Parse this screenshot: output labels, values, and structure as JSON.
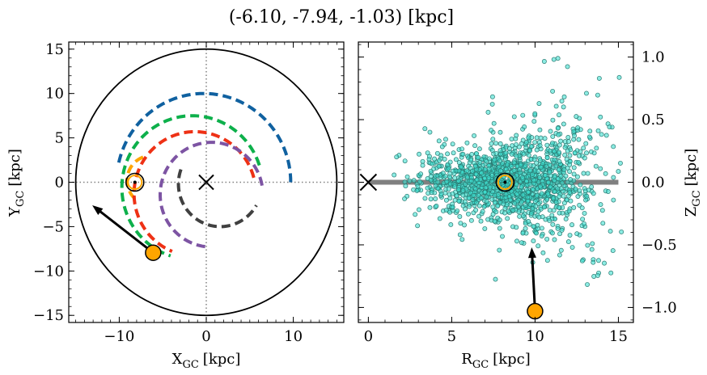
{
  "figure": {
    "title": "(-6.10, -7.94, -1.03) [kpc]"
  },
  "chart_data": [
    {
      "type": "line",
      "panel": "face-on",
      "xlabel": {
        "main": "X",
        "sub": "GC",
        "unit": "[kpc]"
      },
      "ylabel": {
        "main": "Y",
        "sub": "GC",
        "unit": "[kpc]"
      },
      "xlim": [
        -15.8,
        15.8
      ],
      "ylim": [
        -15.8,
        15.8
      ],
      "xticks": [
        -10,
        0,
        10
      ],
      "yticks": [
        -15,
        -10,
        -5,
        0,
        5,
        10,
        15
      ],
      "tick_labels_x": [
        "−10",
        "0",
        "10"
      ],
      "tick_labels_y": [
        "−15",
        "−10",
        "−5",
        "0",
        "5",
        "10",
        "15"
      ],
      "boundary_circle": {
        "cx": 0,
        "cy": 0,
        "r": 15,
        "color": "#000000"
      },
      "reference_lines": {
        "x": 0,
        "y": 0,
        "style": "dotted",
        "color": "#808080"
      },
      "galactic_center": {
        "x": 0,
        "y": 0,
        "marker": "x"
      },
      "sun": {
        "x": -8.2,
        "y": 0.0,
        "marker": "circled-dot",
        "color": "#ffa500"
      },
      "star": {
        "x": -6.1,
        "y": -7.94,
        "color": "#ffa500"
      },
      "arrow": {
        "from": [
          -6.1,
          -7.94
        ],
        "to": [
          -13.1,
          -2.6
        ]
      },
      "spiral_arms": [
        {
          "color": "#1061a0",
          "r": 10.0,
          "theta_start": 0,
          "theta_end": 168,
          "center": [
            -0.3,
            0
          ]
        },
        {
          "color": "#0db04b",
          "r": 8.1,
          "theta_start": 18,
          "theta_end": 252,
          "center": [
            -1.6,
            -0.6
          ]
        },
        {
          "color": "#ffa500",
          "r": 2.8,
          "theta_start": 110,
          "theta_end": 225,
          "center": [
            -6.3,
            0.2
          ]
        },
        {
          "color": "#ee3115",
          "r": 7.0,
          "theta_start": 15,
          "theta_end": 248,
          "center": [
            -1.3,
            -1.3
          ]
        },
        {
          "color": "#7d54a3",
          "r": 5.9,
          "theta_start": 10,
          "theta_end": 268,
          "center": [
            0.6,
            -1.4
          ]
        },
        {
          "color": "#404040",
          "r": 4.8,
          "theta_start": 160,
          "theta_end": 330,
          "center": [
            1.6,
            -0.2
          ]
        }
      ]
    },
    {
      "type": "scatter",
      "panel": "edge-on",
      "xlabel": {
        "main": "R",
        "sub": "GC",
        "unit": "[kpc]"
      },
      "ylabel": {
        "main": "Z",
        "sub": "GC",
        "unit": "[kpc]"
      },
      "xlim": [
        -0.6,
        15.9
      ],
      "ylim": [
        -1.12,
        1.12
      ],
      "xticks": [
        0,
        5,
        10,
        15
      ],
      "yticks": [
        -1.0,
        -0.5,
        0.0,
        0.5,
        1.0
      ],
      "tick_labels_x": [
        "0",
        "5",
        "10",
        "15"
      ],
      "tick_labels_y": [
        "−1.0",
        "−0.5",
        "0.0",
        "0.5",
        "1.0"
      ],
      "disk_line": {
        "x": [
          0,
          15
        ],
        "y": 0,
        "color": "#808080"
      },
      "galactic_center": {
        "x": 0,
        "y": 0,
        "marker": "x"
      },
      "sun": {
        "x": 8.2,
        "y": 0.0,
        "marker": "circled-dot",
        "color": "#ffa500"
      },
      "star": {
        "x": 10.0,
        "y": -1.03,
        "color": "#ffa500"
      },
      "arrow": {
        "from": [
          10.0,
          -1.03
        ],
        "to": [
          9.8,
          -0.52
        ]
      },
      "points_color": "#40e0d0",
      "points_model": {
        "n": 1500,
        "r_center": 8.5,
        "r_spread": 2.6,
        "r_min": 1.5,
        "r_max": 15.3,
        "z_scale": 0.1,
        "z_growth": 0.3
      }
    }
  ]
}
